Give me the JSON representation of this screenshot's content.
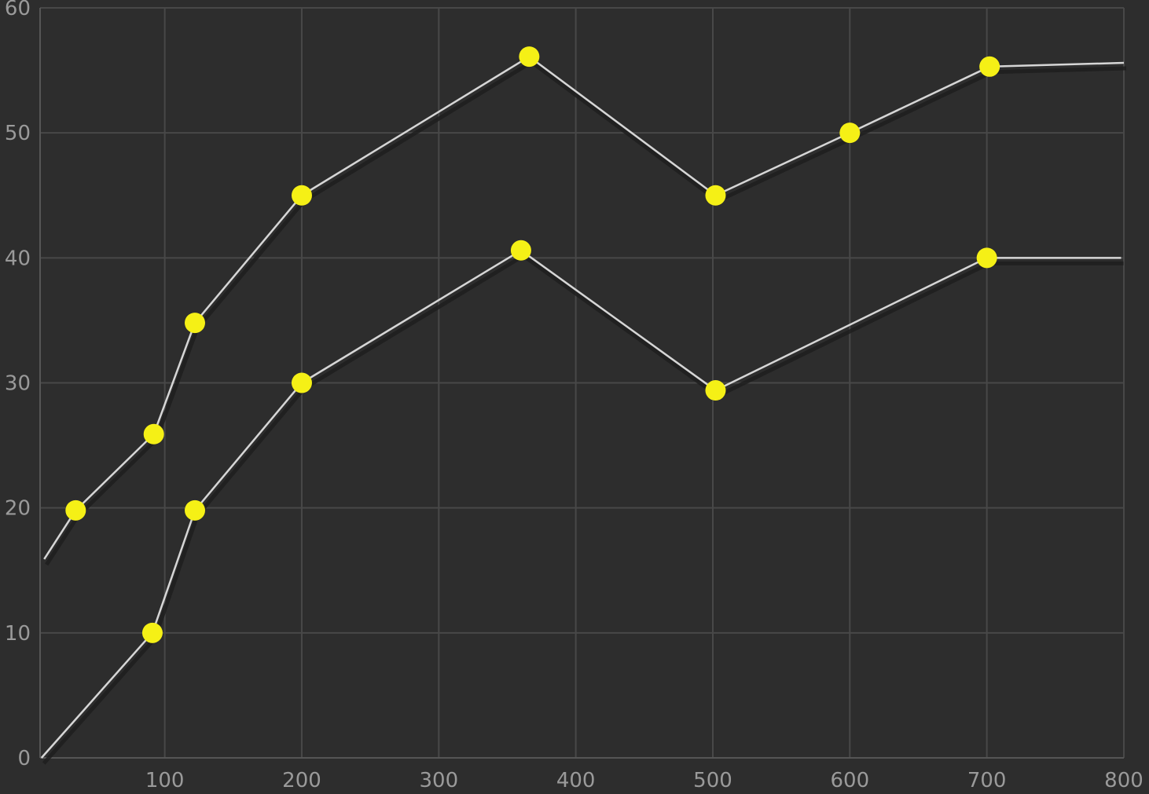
{
  "chart_data": {
    "type": "line",
    "title": "",
    "xlabel": "",
    "ylabel": "",
    "xlim": [
      9,
      800
    ],
    "ylim": [
      0,
      60
    ],
    "grid": true,
    "x_ticks": [
      100,
      200,
      300,
      400,
      500,
      600,
      700,
      800
    ],
    "y_ticks": [
      0,
      10,
      20,
      30,
      40,
      50,
      60
    ],
    "x_tick_labels": [
      "100",
      "200",
      "300",
      "400",
      "500",
      "600",
      "700",
      "800"
    ],
    "y_tick_labels": [
      "0",
      "10",
      "20",
      "30",
      "40",
      "50",
      "60"
    ],
    "series": [
      {
        "line": [
          [
            12,
            15.9
          ],
          [
            35,
            19.8
          ],
          [
            92,
            25.9
          ],
          [
            122,
            34.8
          ],
          [
            200,
            45
          ],
          [
            366,
            56.1
          ],
          [
            502,
            45
          ],
          [
            600,
            50
          ],
          [
            702,
            55.3
          ],
          [
            800,
            55.6
          ]
        ],
        "markers": [
          [
            35,
            19.8
          ],
          [
            92,
            25.9
          ],
          [
            122,
            34.8
          ],
          [
            200,
            45
          ],
          [
            366,
            56.1
          ],
          [
            502,
            45
          ],
          [
            600,
            50
          ],
          [
            702,
            55.3
          ]
        ]
      },
      {
        "line": [
          [
            10,
            0
          ],
          [
            91,
            10
          ],
          [
            122,
            19.8
          ],
          [
            200,
            30
          ],
          [
            360,
            40.6
          ],
          [
            502,
            29.4
          ],
          [
            700,
            40
          ],
          [
            798,
            40
          ]
        ],
        "markers": [
          [
            91,
            10
          ],
          [
            122,
            19.8
          ],
          [
            200,
            30
          ],
          [
            360,
            40.6
          ],
          [
            502,
            29.4
          ],
          [
            700,
            40
          ]
        ]
      }
    ],
    "colors": {
      "background": "#2d2d2d",
      "grid": "#484848",
      "axis": "#555555",
      "line": "#d6d6d6",
      "shadow": "#1e1e1e",
      "marker": "#f5f016",
      "tick_text": "#9a9a9a"
    }
  }
}
